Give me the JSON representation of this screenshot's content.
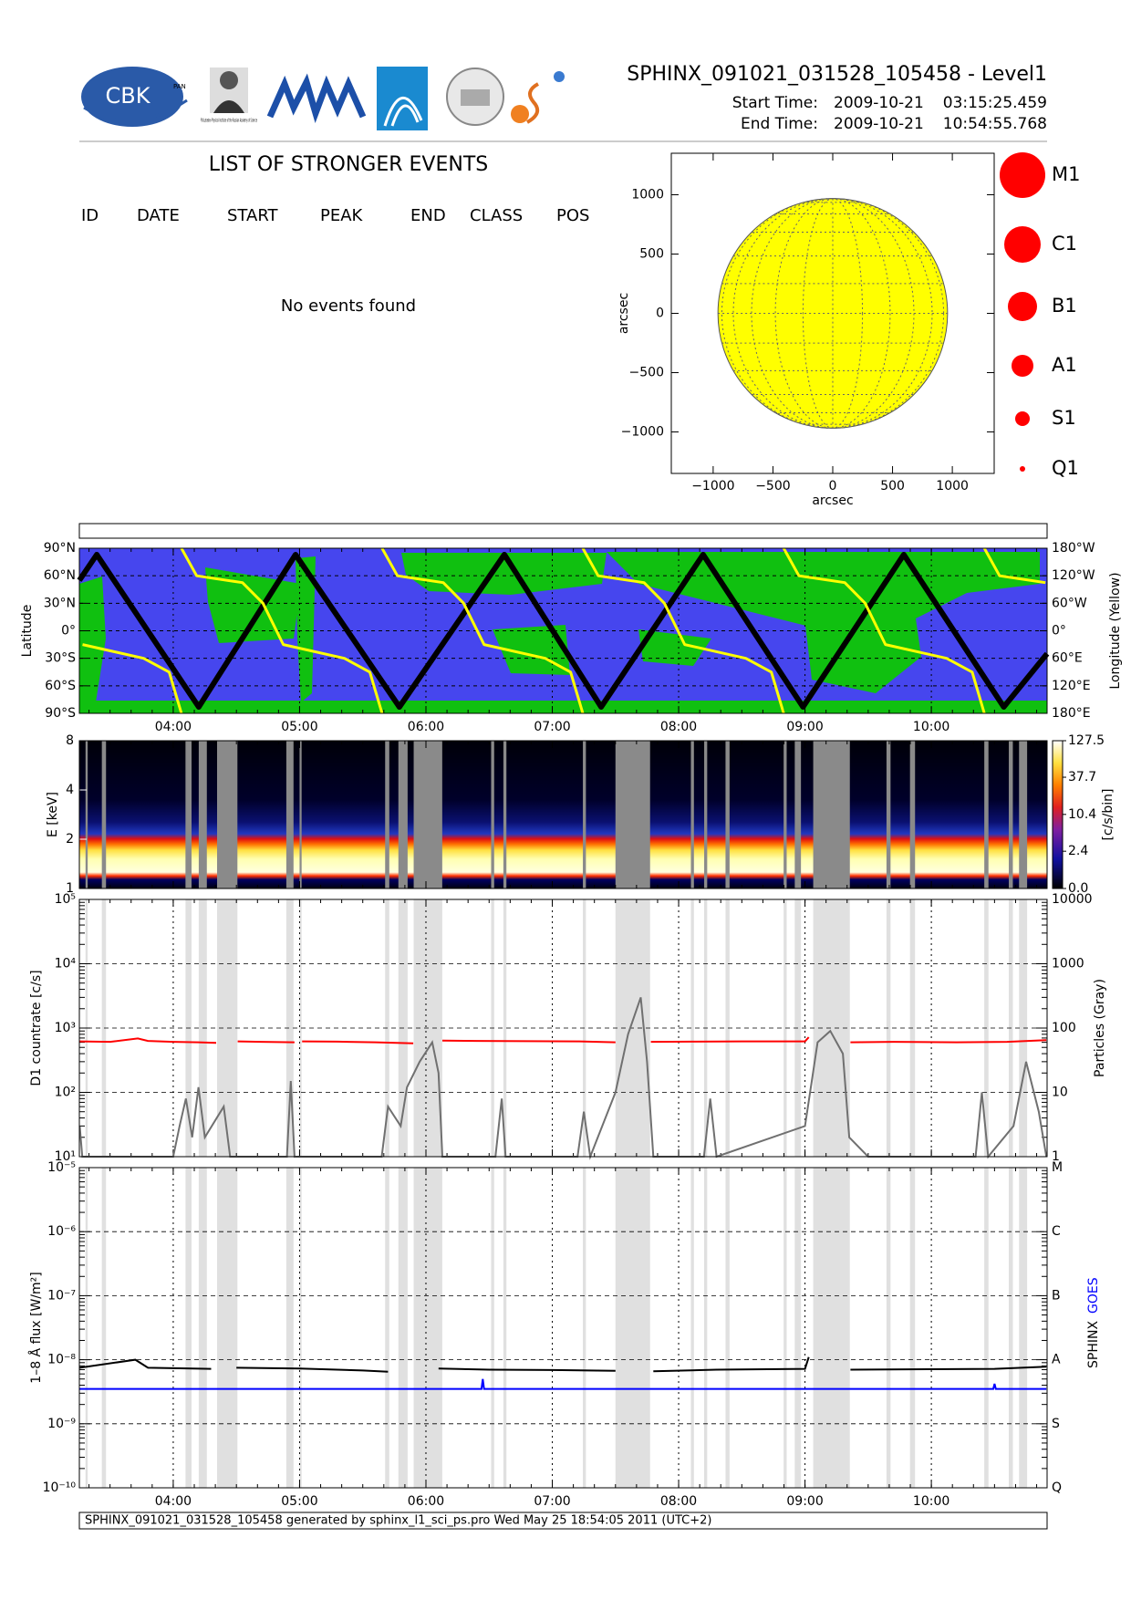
{
  "header": {
    "logos": [
      "CBK",
      "PAN",
      "P.N.Lebedev Physical Institute of the Russian Academy of Science"
    ],
    "title": "SPHINX_091021_031528_105458 - Level1",
    "start_label": "Start Time:",
    "start_date": "2009-10-21",
    "start_time": "03:15:25.459",
    "end_label": "End Time:",
    "end_date": "2009-10-21",
    "end_time": "10:54:55.768"
  },
  "events": {
    "title": "LIST OF STRONGER EVENTS",
    "columns": [
      "ID",
      "DATE",
      "START",
      "PEAK",
      "END",
      "CLASS",
      "POS"
    ],
    "message": "No events found"
  },
  "chart_data": [
    {
      "type": "disk",
      "xlim": [
        -1350,
        1350
      ],
      "ylim": [
        -1350,
        1350
      ],
      "xticks": [
        {
          "value": -1000,
          "label": "−1000"
        },
        {
          "value": -500,
          "label": "−500"
        },
        0,
        500,
        1000
      ],
      "yticks": [
        {
          "value": -1000,
          "label": "−1000"
        },
        {
          "value": -500,
          "label": "−500"
        },
        0,
        500,
        1000
      ],
      "xlabel": "arcsec",
      "ylabel": "arcsec",
      "radius": 960,
      "color": "#ffff00",
      "grid": true,
      "legend": [
        "M1",
        "C1",
        "B1",
        "A1",
        "S1",
        "Q1"
      ],
      "legend_color": "#ff0000"
    },
    {
      "type": "track",
      "xlim": [
        3.257,
        10.916
      ],
      "xticks": [
        {
          "value": 4,
          "label": "04:00"
        },
        {
          "value": 5,
          "label": "05:00"
        },
        {
          "value": 6,
          "label": "06:00"
        },
        {
          "value": 7,
          "label": "07:00"
        },
        {
          "value": 8,
          "label": "08:00"
        },
        {
          "value": 9,
          "label": "09:00"
        },
        {
          "value": 10,
          "label": "10:00"
        }
      ],
      "ylim": [
        -90,
        90
      ],
      "yticks": [
        {
          "value": 90,
          "label": "90°N"
        },
        {
          "value": 60,
          "label": "60°N"
        },
        {
          "value": 30,
          "label": "30°N"
        },
        {
          "value": 0,
          "label": "0°"
        },
        {
          "value": -30,
          "label": "30°S"
        },
        {
          "value": -60,
          "label": "60°S"
        },
        {
          "value": -90,
          "label": "90°S"
        }
      ],
      "y2lim": [
        180,
        -180
      ],
      "y2ticks": [
        {
          "value": -180,
          "label": "180°W"
        },
        {
          "value": -120,
          "label": "120°W"
        },
        {
          "value": -60,
          "label": "60°W"
        },
        {
          "value": 0,
          "label": "0°"
        },
        {
          "value": 60,
          "label": "60°E"
        },
        {
          "value": 120,
          "label": "120°E"
        },
        {
          "value": 180,
          "label": "180°E"
        }
      ],
      "ylabel": "Latitude",
      "y2label": "Longitude (Yellow)",
      "grid": true,
      "series": [
        {
          "color": "#000000",
          "x": [
            3.257,
            3.395,
            4.202,
            4.968,
            5.79,
            6.621,
            7.387,
            8.194,
            8.984,
            9.782,
            10.573,
            10.916
          ],
          "values": [
            55,
            83,
            -83,
            83,
            -83,
            83,
            -83,
            83,
            -83,
            83,
            -83,
            -25
          ]
        },
        {
          "color": "#ffff00",
          "axis": "y2",
          "x": [
            3.282,
            3.766,
            3.968,
            4.065,
            4.065,
            4.065,
            4.185,
            4.548,
            4.71,
            4.871,
            5.355,
            5.556,
            5.653,
            5.653,
            5.653,
            5.774,
            6.137,
            6.298,
            6.46,
            6.944,
            7.145,
            7.242,
            7.242,
            7.242,
            7.363,
            7.726,
            7.887,
            8.048,
            8.532,
            8.734,
            8.831,
            8.831,
            8.831,
            8.952,
            9.315,
            9.476,
            9.637,
            10.121,
            10.323,
            10.419,
            10.419,
            10.419,
            10.54,
            10.903
          ],
          "values": [
            30,
            60,
            90,
            180,
            null,
            -180,
            -120,
            -105,
            -60,
            30,
            60,
            90,
            180,
            null,
            -180,
            -120,
            -105,
            -60,
            30,
            60,
            90,
            180,
            null,
            -180,
            -120,
            -105,
            -60,
            30,
            60,
            90,
            180,
            null,
            -180,
            -120,
            -105,
            -60,
            30,
            60,
            90,
            180,
            null,
            -180,
            -120,
            -105
          ]
        }
      ]
    },
    {
      "type": "spectrogram",
      "xlim": [
        3.257,
        10.916
      ],
      "ylim": [
        1,
        8
      ],
      "log": true,
      "yticks": [
        1,
        2,
        4,
        8
      ],
      "ylabel": "E [keV]",
      "colorbar": {
        "lim": [
          0,
          127.5
        ],
        "scale": "log1p",
        "ticks": [
          {
            "value": 0,
            "label": "0.0"
          },
          2.4,
          10.4,
          37.7,
          127.5
        ],
        "label": "[c/s/bin]"
      },
      "gaps": [
        [
          3.306,
          3.323
        ],
        [
          3.435,
          3.468
        ],
        [
          4.097,
          4.145
        ],
        [
          4.202,
          4.266
        ],
        [
          4.347,
          4.508
        ],
        [
          4.895,
          4.952
        ],
        [
          5.0,
          5.016
        ],
        [
          5.677,
          5.71
        ],
        [
          5.782,
          5.855
        ],
        [
          5.903,
          6.129
        ],
        [
          6.516,
          6.54
        ],
        [
          6.613,
          6.637
        ],
        [
          7.242,
          7.266
        ],
        [
          7.5,
          7.774
        ],
        [
          8.097,
          8.121
        ],
        [
          8.202,
          8.226
        ],
        [
          8.371,
          8.403
        ],
        [
          8.831,
          8.855
        ],
        [
          8.919,
          8.968
        ],
        [
          9.065,
          9.355
        ],
        [
          9.645,
          9.677
        ],
        [
          9.831,
          9.871
        ],
        [
          10.419,
          10.452
        ],
        [
          10.613,
          10.645
        ],
        [
          10.694,
          10.758
        ]
      ]
    },
    {
      "type": "line",
      "log": true,
      "xlim": [
        3.257,
        10.916
      ],
      "ylim": [
        10,
        100000
      ],
      "yticks": [
        {
          "value": 10,
          "label": "10¹"
        },
        {
          "value": 100,
          "label": "10²"
        },
        {
          "value": 1000,
          "label": "10³"
        },
        {
          "value": 10000,
          "label": "10⁴"
        },
        {
          "value": 100000,
          "label": "10⁵"
        }
      ],
      "y2lim": [
        1,
        10000
      ],
      "y2ticks": [
        1,
        10,
        100,
        1000,
        10000
      ],
      "ylabel": "D1 countrate [c/s]",
      "y2label": "Particles (Gray)",
      "grid": true,
      "series": [
        {
          "color": "#ff0000",
          "x": [
            3.26,
            3.5,
            3.72,
            3.8,
            4.0,
            4.2,
            4.34,
            4.4,
            4.51,
            4.7,
            4.96,
            5.0,
            5.02,
            5.3,
            5.6,
            5.9,
            6.0,
            6.13,
            6.4,
            6.8,
            7.2,
            7.5,
            7.6,
            7.78,
            8.1,
            8.5,
            9.0,
            9.03,
            9.2,
            9.36,
            9.7,
            10.2,
            10.6,
            10.91
          ],
          "values": [
            620,
            610,
            690,
            630,
            610,
            600,
            590,
            null,
            620,
            610,
            600,
            null,
            620,
            615,
            600,
            580,
            null,
            640,
            630,
            625,
            620,
            600,
            null,
            610,
            615,
            620,
            620,
            720,
            null,
            600,
            610,
            600,
            610,
            650
          ]
        },
        {
          "color": "#707070",
          "axis": "y2",
          "x": [
            3.26,
            3.28,
            3.4,
            4.0,
            4.05,
            4.1,
            4.15,
            4.2,
            4.25,
            4.4,
            4.45,
            4.9,
            4.93,
            4.96,
            5.65,
            5.7,
            5.8,
            5.85,
            5.95,
            6.05,
            6.1,
            6.13,
            6.55,
            6.6,
            6.63,
            7.2,
            7.25,
            7.3,
            7.5,
            7.6,
            7.7,
            7.75,
            7.8,
            8.2,
            8.25,
            8.3,
            9.0,
            9.1,
            9.2,
            9.3,
            9.35,
            9.5,
            10.35,
            10.4,
            10.45,
            10.65,
            10.75,
            10.85,
            10.91
          ],
          "values": [
            3,
            1,
            1,
            1,
            3,
            8,
            2,
            12,
            2,
            6,
            1,
            1,
            15,
            1,
            1,
            6,
            3,
            12,
            30,
            60,
            20,
            1,
            1,
            8,
            1,
            1,
            5,
            1,
            10,
            80,
            300,
            30,
            1,
            1,
            8,
            1,
            3,
            60,
            90,
            40,
            2,
            1,
            1,
            10,
            1,
            3,
            30,
            5,
            1
          ]
        }
      ]
    },
    {
      "type": "line",
      "log": true,
      "xlim": [
        3.257,
        10.916
      ],
      "xticks": [
        {
          "value": 4,
          "label": "04:00"
        },
        {
          "value": 5,
          "label": "05:00"
        },
        {
          "value": 6,
          "label": "06:00"
        },
        {
          "value": 7,
          "label": "07:00"
        },
        {
          "value": 8,
          "label": "08:00"
        },
        {
          "value": 9,
          "label": "09:00"
        },
        {
          "value": 10,
          "label": "10:00"
        }
      ],
      "ylim": [
        1e-10,
        1e-05
      ],
      "yticks": [
        {
          "value": 1e-10,
          "label": "10⁻¹⁰"
        },
        {
          "value": 1e-09,
          "label": "10⁻⁹"
        },
        {
          "value": 1e-08,
          "label": "10⁻⁸"
        },
        {
          "value": 1e-07,
          "label": "10⁻⁷"
        },
        {
          "value": 1e-06,
          "label": "10⁻⁶"
        },
        {
          "value": 1e-05,
          "label": "10⁻⁵"
        }
      ],
      "y2lim": [
        1e-10,
        1e-05
      ],
      "y2ticks": [
        {
          "value": 1e-05,
          "label": "M"
        },
        {
          "value": 1e-06,
          "label": "C"
        },
        {
          "value": 1e-07,
          "label": "B"
        },
        {
          "value": 1e-08,
          "label": "A"
        },
        {
          "value": 1e-09,
          "label": "S"
        },
        {
          "value": 1e-10,
          "label": "Q"
        }
      ],
      "ylabel": "1–8 Å flux [W/m²]",
      "grid": true,
      "series": [
        {
          "name": "SPHINX",
          "color": "#000000",
          "x": [
            3.26,
            3.7,
            3.8,
            4.3,
            4.4,
            4.5,
            5.0,
            5.5,
            5.7,
            6.0,
            6.1,
            6.5,
            7.0,
            7.5,
            7.6,
            7.8,
            8.3,
            9.0,
            9.03,
            9.2,
            9.36,
            10.0,
            10.5,
            10.91
          ],
          "values": [
            7.5e-09,
            1e-08,
            7.5e-09,
            7.2e-09,
            null,
            7.5e-09,
            7.3e-09,
            6.8e-09,
            6.5e-09,
            null,
            7.3e-09,
            7e-09,
            6.9e-09,
            6.7e-09,
            null,
            6.6e-09,
            7e-09,
            7.2e-09,
            1.1e-08,
            null,
            7e-09,
            7.1e-09,
            7.2e-09,
            7.8e-09
          ]
        },
        {
          "name": "GOES",
          "color": "#0000ff",
          "x": [
            3.26,
            6.44,
            6.45,
            6.46,
            10.49,
            10.5,
            10.51,
            10.91
          ],
          "values": [
            3.5e-09,
            3.5e-09,
            5e-09,
            3.5e-09,
            3.5e-09,
            4.2e-09,
            3.5e-09,
            3.5e-09
          ]
        }
      ]
    }
  ],
  "footer": "SPHINX_091021_031528_105458 generated by sphinx_l1_sci_ps.pro Wed May 25 18:54:05 2011 (UTC+2)"
}
